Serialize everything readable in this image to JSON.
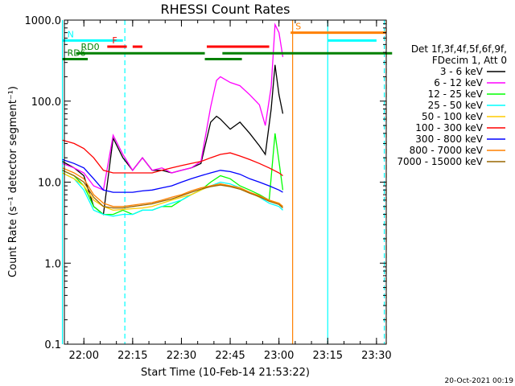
{
  "chart_data": {
    "type": "line",
    "title": "RHESSI Count Rates",
    "xlabel": "Start Time (10-Feb-14 21:53:22)",
    "ylabel": "Count Rate (s⁻¹ detector segment⁻¹)",
    "yscale": "log",
    "ylim": [
      0.1,
      1000
    ],
    "xlim_minutes": [
      21.9,
      23.55
    ],
    "x_ticks": [
      {
        "t": "22:00",
        "v": 22.0
      },
      {
        "t": "22:15",
        "v": 22.25
      },
      {
        "t": "22:30",
        "v": 22.5
      },
      {
        "t": "22:45",
        "v": 22.75
      },
      {
        "t": "23:00",
        "v": 23.0
      },
      {
        "t": "23:15",
        "v": 23.25
      },
      {
        "t": "23:30",
        "v": 23.5
      }
    ],
    "y_ticks": [
      {
        "t": "0.1",
        "v": 0.1
      },
      {
        "t": "1.0",
        "v": 1.0
      },
      {
        "t": "10.0",
        "v": 10.0
      },
      {
        "t": "100.0",
        "v": 100.0
      },
      {
        "t": "1000.0",
        "v": 1000.0
      }
    ],
    "legend_header": [
      "Det 1f,3f,4f,5f,6f,9f,",
      "FDecim 1, Att 0"
    ],
    "legend_position": "right",
    "series": [
      {
        "name": "3 - 6 keV",
        "color": "#000000",
        "x": [
          21.89,
          21.95,
          22.0,
          22.05,
          22.1,
          22.15,
          22.2,
          22.25,
          22.3,
          22.35,
          22.4,
          22.45,
          22.5,
          22.55,
          22.6,
          22.65,
          22.68,
          22.7,
          22.75,
          22.8,
          22.85,
          22.9,
          22.93,
          22.96,
          22.98,
          23.0,
          23.02
        ],
        "y": [
          18,
          15,
          12,
          5,
          4,
          35,
          20,
          14,
          20,
          14,
          14,
          13,
          14,
          15,
          17,
          55,
          65,
          60,
          45,
          55,
          40,
          28,
          22,
          80,
          280,
          120,
          70
        ]
      },
      {
        "name": "6 - 12 keV",
        "color": "#ff00ff",
        "x": [
          21.89,
          21.95,
          22.0,
          22.05,
          22.1,
          22.15,
          22.2,
          22.25,
          22.3,
          22.35,
          22.4,
          22.45,
          22.5,
          22.55,
          22.6,
          22.65,
          22.68,
          22.7,
          22.75,
          22.8,
          22.85,
          22.9,
          22.93,
          22.96,
          22.98,
          23.0,
          23.02
        ],
        "y": [
          17,
          15,
          13,
          9,
          8,
          38,
          22,
          14,
          20,
          14,
          15,
          13,
          14,
          15,
          18,
          85,
          180,
          200,
          170,
          155,
          120,
          90,
          50,
          150,
          880,
          700,
          350
        ]
      },
      {
        "name": "12 - 25 keV",
        "color": "#00ff00",
        "x": [
          21.89,
          21.95,
          22.0,
          22.05,
          22.1,
          22.15,
          22.2,
          22.25,
          22.3,
          22.35,
          22.4,
          22.45,
          22.5,
          22.55,
          22.6,
          22.65,
          22.7,
          22.75,
          22.8,
          22.85,
          22.9,
          22.95,
          22.98,
          23.0,
          23.02
        ],
        "y": [
          14,
          12,
          9,
          5,
          4,
          4,
          4.5,
          4,
          4.5,
          4.5,
          5,
          5,
          6,
          7,
          8,
          10,
          12,
          11,
          9,
          8,
          7,
          6,
          40,
          18,
          8
        ]
      },
      {
        "name": "25 - 50 keV",
        "color": "#00ffff",
        "x": [
          21.89,
          21.95,
          22.0,
          22.05,
          22.1,
          22.15,
          22.2,
          22.25,
          22.3,
          22.35,
          22.4,
          22.45,
          22.5,
          22.55,
          22.6,
          22.65,
          22.7,
          22.75,
          22.8,
          22.85,
          22.9,
          22.95,
          23.0,
          23.02
        ],
        "y": [
          13,
          11,
          8,
          4.5,
          4,
          3.8,
          4,
          4,
          4.5,
          4.5,
          5,
          5.5,
          6,
          7,
          8,
          9,
          10,
          9.5,
          8.5,
          7.5,
          6.5,
          5.5,
          5,
          4.5
        ]
      },
      {
        "name": "50 - 100 keV",
        "color": "#ffcc00",
        "x": [
          21.89,
          21.95,
          22.0,
          22.05,
          22.1,
          22.15,
          22.2,
          22.25,
          22.3,
          22.35,
          22.4,
          22.45,
          22.5,
          22.55,
          22.6,
          22.65,
          22.7,
          22.75,
          22.8,
          22.85,
          22.9,
          22.95,
          23.0,
          23.02
        ],
        "y": [
          13,
          11,
          9,
          6,
          5,
          4.5,
          4.6,
          4.7,
          4.8,
          5,
          5.5,
          6,
          6.5,
          7,
          8,
          9,
          9.5,
          9,
          8.5,
          7.5,
          6.5,
          6,
          5.5,
          5
        ]
      },
      {
        "name": "100 - 300 keV",
        "color": "#ff0000",
        "x": [
          21.89,
          21.95,
          22.0,
          22.05,
          22.1,
          22.15,
          22.2,
          22.25,
          22.3,
          22.35,
          22.4,
          22.45,
          22.5,
          22.55,
          22.6,
          22.65,
          22.7,
          22.75,
          22.8,
          22.85,
          22.9,
          22.95,
          23.0,
          23.02
        ],
        "y": [
          33,
          30,
          26,
          20,
          14,
          13,
          13,
          13,
          13,
          13,
          14,
          15,
          16,
          17,
          18,
          20,
          22,
          23,
          21,
          19,
          17,
          15,
          13,
          12
        ]
      },
      {
        "name": "300 - 800 keV",
        "color": "#0000ff",
        "x": [
          21.89,
          21.95,
          22.0,
          22.05,
          22.1,
          22.15,
          22.2,
          22.25,
          22.3,
          22.35,
          22.4,
          22.45,
          22.5,
          22.55,
          22.6,
          22.65,
          22.7,
          22.75,
          22.8,
          22.85,
          22.9,
          22.95,
          23.0,
          23.02
        ],
        "y": [
          19,
          17,
          15,
          11,
          8,
          7.5,
          7.5,
          7.5,
          7.8,
          8,
          8.5,
          9,
          10,
          11,
          12,
          13,
          14,
          13.5,
          12.5,
          11,
          10,
          9,
          8,
          7.5
        ]
      },
      {
        "name": "800 - 7000 keV",
        "color": "#ff8000",
        "x": [
          21.89,
          21.95,
          22.0,
          22.05,
          22.1,
          22.15,
          22.2,
          22.25,
          22.3,
          22.35,
          22.4,
          22.45,
          22.5,
          22.55,
          22.6,
          22.65,
          22.7,
          22.75,
          22.8,
          22.85,
          22.9,
          22.95,
          23.0,
          23.02
        ],
        "y": [
          15,
          13,
          11,
          7,
          5.5,
          5,
          5,
          5.2,
          5.4,
          5.6,
          6,
          6.5,
          7,
          7.8,
          8.5,
          9,
          9.5,
          9,
          8.5,
          7.5,
          6.8,
          6,
          5.5,
          5
        ]
      },
      {
        "name": "7000 - 15000 keV",
        "color": "#996600",
        "x": [
          21.89,
          21.95,
          22.0,
          22.05,
          22.1,
          22.15,
          22.2,
          22.25,
          22.3,
          22.35,
          22.4,
          22.45,
          22.5,
          22.55,
          22.6,
          22.65,
          22.7,
          22.75,
          22.8,
          22.85,
          22.9,
          22.95,
          23.0,
          23.02
        ],
        "y": [
          14,
          12,
          10,
          6.5,
          5,
          4.8,
          4.8,
          5,
          5.2,
          5.4,
          5.8,
          6.2,
          6.8,
          7.5,
          8.2,
          8.8,
          9.2,
          8.8,
          8.2,
          7.3,
          6.6,
          5.8,
          5.3,
          4.8
        ]
      }
    ],
    "flag_bars": [
      {
        "label": "N",
        "color": "#00ffff",
        "y": 560,
        "segments": [
          [
            21.89,
            22.2
          ],
          [
            23.25,
            23.5
          ]
        ]
      },
      {
        "label": "F",
        "color": "#ff0000",
        "y": 470,
        "segments": [
          [
            22.12,
            22.22
          ],
          [
            22.25,
            22.3
          ],
          [
            22.63,
            22.95
          ]
        ]
      },
      {
        "label": "RD0",
        "color": "#008000",
        "y": 390,
        "segments": [
          [
            21.96,
            22.62
          ],
          [
            22.71,
            23.58
          ]
        ]
      },
      {
        "label": "RD6",
        "color": "#008000",
        "y": 330,
        "segments": [
          [
            21.89,
            22.02
          ],
          [
            22.62,
            22.81
          ]
        ]
      },
      {
        "label": "S",
        "color": "#ff8000",
        "y": 700,
        "segments": [
          [
            23.06,
            23.55
          ]
        ]
      }
    ],
    "vertical_lines": [
      {
        "x": 21.89,
        "color": "#00ffff",
        "style": "solid"
      },
      {
        "x": 22.21,
        "color": "#00ffff",
        "style": "dashed"
      },
      {
        "x": 23.07,
        "color": "#ff8000",
        "style": "solid"
      },
      {
        "x": 23.25,
        "color": "#00ffff",
        "style": "solid"
      },
      {
        "x": 23.54,
        "color": "#00ffff",
        "style": "dashed"
      },
      {
        "x": 23.55,
        "color": "#ff8000",
        "style": "dashed"
      }
    ]
  },
  "footer": {
    "date": "20-Oct-2021 00:19"
  }
}
